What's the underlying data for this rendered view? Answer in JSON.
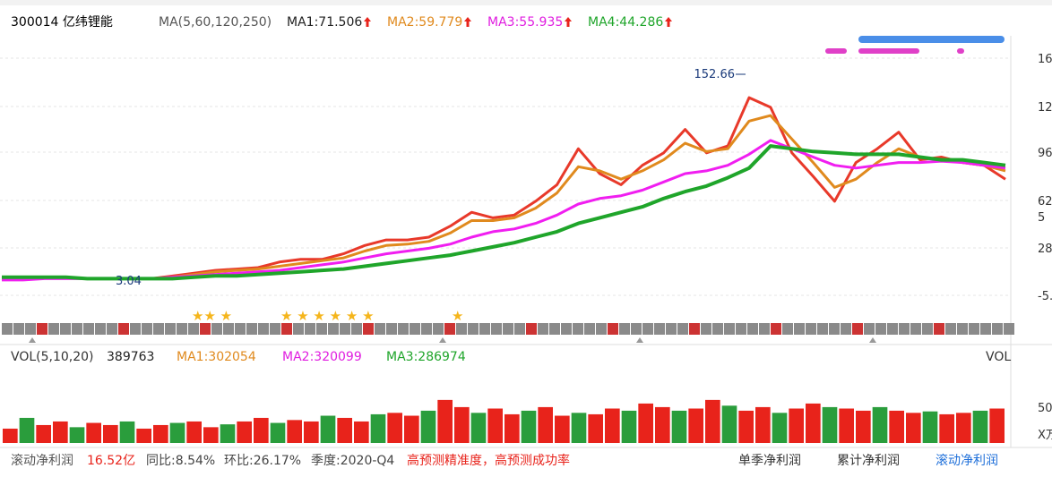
{
  "header": {
    "code_name": "300014 亿纬锂能",
    "ma_params": "MA(5,60,120,250)",
    "ma": [
      "MA1:71.506",
      "MA2:59.779",
      "MA3:55.935",
      "MA4:44.286"
    ]
  },
  "price_chart": {
    "ylim": [
      -10,
      170
    ],
    "axis_labels": [
      "16",
      "12",
      "96",
      "62",
      "28",
      "-5.",
      "5"
    ],
    "annotations": [
      "152.66",
      "3.04"
    ],
    "series": [
      {
        "color": "#e8392a",
        "values": [
          4,
          5,
          5,
          5,
          4,
          4,
          4,
          4,
          6,
          8,
          10,
          11,
          12,
          16,
          18,
          18,
          22,
          28,
          32,
          32,
          34,
          42,
          52,
          48,
          50,
          60,
          72,
          98,
          80,
          72,
          86,
          95,
          112,
          95,
          100,
          135,
          128,
          95,
          78,
          60,
          88,
          98,
          110,
          90,
          92,
          88,
          86,
          76
        ]
      },
      {
        "color": "#e08a1e",
        "values": [
          4,
          4,
          5,
          5,
          4,
          4,
          4,
          4,
          5,
          7,
          9,
          10,
          11,
          13,
          15,
          17,
          19,
          24,
          28,
          29,
          31,
          37,
          46,
          46,
          48,
          55,
          66,
          85,
          82,
          76,
          82,
          90,
          102,
          96,
          98,
          118,
          122,
          105,
          88,
          70,
          76,
          88,
          98,
          92,
          90,
          88,
          86,
          82
        ]
      },
      {
        "color": "#f01ef0",
        "values": [
          3,
          3,
          4,
          4,
          4,
          4,
          4,
          4,
          5,
          6,
          7,
          8,
          9,
          10,
          12,
          14,
          16,
          19,
          22,
          24,
          26,
          29,
          34,
          38,
          40,
          44,
          50,
          58,
          62,
          64,
          68,
          74,
          80,
          82,
          86,
          94,
          104,
          98,
          92,
          86,
          84,
          86,
          88,
          88,
          89,
          88,
          86,
          84
        ]
      },
      {
        "color": "#1fa52a",
        "values": [
          5,
          5,
          5,
          5,
          4,
          4,
          4,
          4,
          4,
          5,
          6,
          6,
          7,
          8,
          9,
          10,
          11,
          13,
          15,
          17,
          19,
          21,
          24,
          27,
          30,
          34,
          38,
          44,
          48,
          52,
          56,
          62,
          67,
          71,
          77,
          84,
          100,
          98,
          96,
          95,
          94,
          94,
          94,
          92,
          90,
          90,
          88,
          86
        ]
      }
    ]
  },
  "volume": {
    "header": "VOL(5,10,20)",
    "current": "389763",
    "ma": [
      "MA1:302054",
      "MA2:320099",
      "MA3:286974"
    ],
    "label": "VOL",
    "axis_labels": [
      "50.",
      "X万"
    ],
    "ylim": [
      0,
      106
    ],
    "values": [
      20,
      35,
      25,
      30,
      22,
      28,
      25,
      30,
      20,
      25,
      28,
      30,
      22,
      26,
      30,
      35,
      28,
      32,
      30,
      38,
      35,
      30,
      40,
      42,
      38,
      45,
      60,
      50,
      42,
      48,
      40,
      45,
      50,
      38,
      42,
      40,
      48,
      45,
      55,
      50,
      45,
      48,
      60,
      52,
      45,
      50,
      42,
      48,
      55,
      50,
      48,
      45,
      50,
      45,
      42,
      44,
      40,
      42,
      45,
      48
    ]
  },
  "footer": {
    "metric": "滚动净利润",
    "value": "16.52亿",
    "yoy": "同比:8.54%",
    "qoq": "环比:26.17%",
    "quarter": "季度:2020-Q4",
    "note": "高预测精准度，高预测成功率",
    "tabs": [
      "单季净利润",
      "累计净利润",
      "滚动净利润"
    ]
  }
}
